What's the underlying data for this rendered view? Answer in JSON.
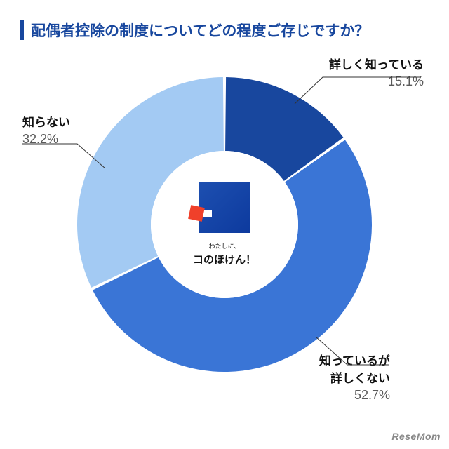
{
  "title": "配偶者控除の制度についてどの程度ご存じですか？",
  "title_color": "#18479e",
  "title_fontsize": 21,
  "chart": {
    "type": "donut",
    "start_angle_deg": -90,
    "radius_outer": 210,
    "radius_inner": 105,
    "background_color": "#ffffff",
    "slices": [
      {
        "key": "know_well",
        "label": "詳しく知っている",
        "value": 15.1,
        "color": "#18479e"
      },
      {
        "key": "know_vague",
        "label": "知っているが\n詳しくない",
        "value": 52.7,
        "color": "#3a75d6"
      },
      {
        "key": "dont_know",
        "label": "知らない",
        "value": 32.2,
        "color": "#a3caf3"
      }
    ]
  },
  "labels": {
    "know_well": {
      "name": "詳しく知っている",
      "pct": "15.1%",
      "name_fontsize": 17,
      "pct_fontsize": 18
    },
    "know_vague": {
      "name_l1": "知っているが",
      "name_l2": "詳しくない",
      "pct": "52.7%",
      "name_fontsize": 17,
      "pct_fontsize": 18
    },
    "dont_know": {
      "name": "知らない",
      "pct": "32.2%",
      "name_fontsize": 17,
      "pct_fontsize": 18
    }
  },
  "center_logo": {
    "sub": "わたしに、",
    "main": "コのほけん！",
    "blue": "#1646ac",
    "red": "#f0402a"
  },
  "watermark": "ReseMom"
}
